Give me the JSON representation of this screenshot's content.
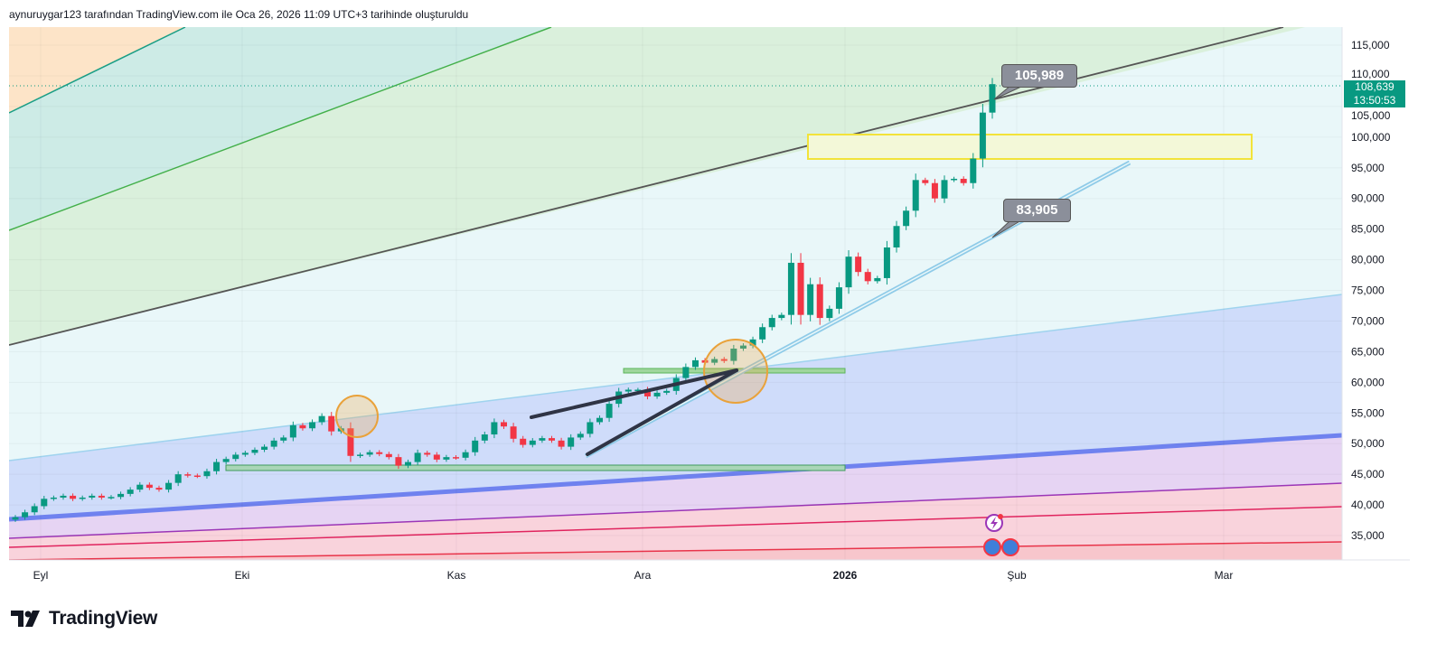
{
  "header": {
    "attribution": "aynuruygar123 tarafından TradingView.com ile Oca 26, 2026 11:09 UTC+3 tarihinde oluşturuldu"
  },
  "brand": {
    "name": "TradingView"
  },
  "labels": {
    "upper_callout": "105,989",
    "lower_callout": "83,905"
  },
  "last_price": {
    "price": "108,639",
    "countdown": "13:50:53",
    "color": "#089981"
  },
  "colors": {
    "up": "#089981",
    "down": "#f23645"
  },
  "chart_data": {
    "type": "candlestick",
    "title": "",
    "y_ticks": [
      "115,000",
      "110,000",
      "105,000",
      "100,000",
      "95,000",
      "90,000",
      "85,000",
      "80,000",
      "75,000",
      "70,000",
      "65,000",
      "60,000",
      "55,000",
      "50,000",
      "45,000",
      "40,000",
      "35,000"
    ],
    "x_ticks": [
      "Eyl",
      "Eki",
      "Kas",
      "Ara",
      "2026",
      "Şub",
      "Mar"
    ],
    "ylim": [
      31000,
      118000
    ],
    "first_open": 37600,
    "closes": [
      38000,
      38800,
      39800,
      41000,
      41200,
      41500,
      41000,
      41200,
      41500,
      41200,
      41300,
      41800,
      42500,
      43300,
      42800,
      42500,
      43600,
      45000,
      44800,
      44700,
      45500,
      47000,
      47500,
      48200,
      48500,
      49000,
      49500,
      50500,
      51000,
      53000,
      52500,
      53500,
      54500,
      52000,
      52500,
      48000,
      48200,
      48600,
      48300,
      47800,
      46400,
      47000,
      48500,
      48200,
      47400,
      47800,
      47700,
      48600,
      50500,
      51500,
      53500,
      52800,
      50800,
      49800,
      50500,
      50900,
      50500,
      49500,
      51000,
      51600,
      53500,
      54200,
      56500,
      58500,
      58800,
      58800,
      57700,
      58300,
      58600,
      60700,
      62500,
      63600,
      63200,
      63800,
      63500,
      65500,
      66000,
      67000,
      69000,
      70500,
      71000,
      79500,
      71000,
      76000,
      70500,
      72000,
      75500,
      80500,
      78000,
      76500,
      77000,
      82000,
      85500,
      88000,
      93000,
      92500,
      90000,
      93000,
      93200,
      92500,
      96500,
      104000,
      108639
    ],
    "annotations": [
      "105,989",
      "83,905"
    ]
  }
}
